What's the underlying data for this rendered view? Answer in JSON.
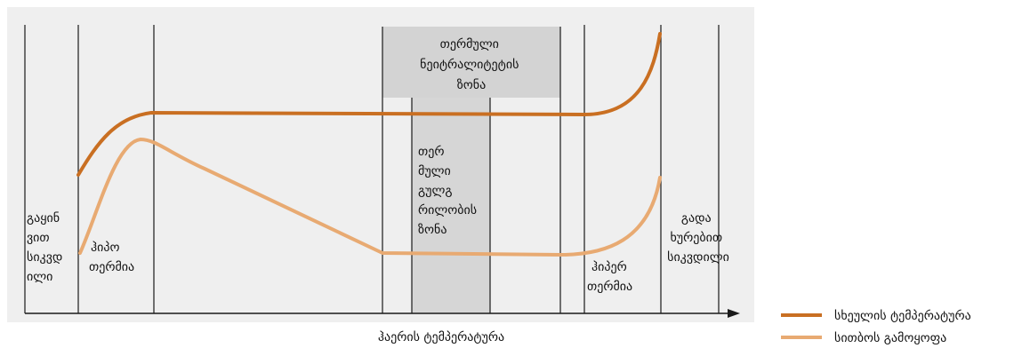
{
  "colors": {
    "panel_bg": "#efefef",
    "neutral_zone_bg": "#d3d3d3",
    "core_zone_bg": "#d6d6d6",
    "body_temp_line": "#c96f22",
    "heat_production_line": "#e8aa72",
    "grid_line": "#1a1a1a"
  },
  "zones": {
    "thermoneutral": [
      "თერმული",
      "ნეიტრალიტეტის",
      "ზონა"
    ],
    "thermo_core": [
      "თერ",
      "მული",
      "გულგ",
      "რილობის",
      "ზონა"
    ],
    "death_cold": [
      "გაყინ",
      "ვით",
      "სიკვდ",
      "ილი"
    ],
    "hypothermia": [
      "ჰიპო",
      "თერმია"
    ],
    "hyperthermia": [
      "ჰიპერ",
      "თერმია"
    ],
    "death_heat": [
      "გადა",
      "ხურებით",
      "სიკვდილი"
    ]
  },
  "x_axis_label": "ჰაერის ტემპერატურა",
  "legend": {
    "body_temperature": "სხეულის ტემპერატურა",
    "heat_production": "სითბოს გამოყოფა"
  }
}
